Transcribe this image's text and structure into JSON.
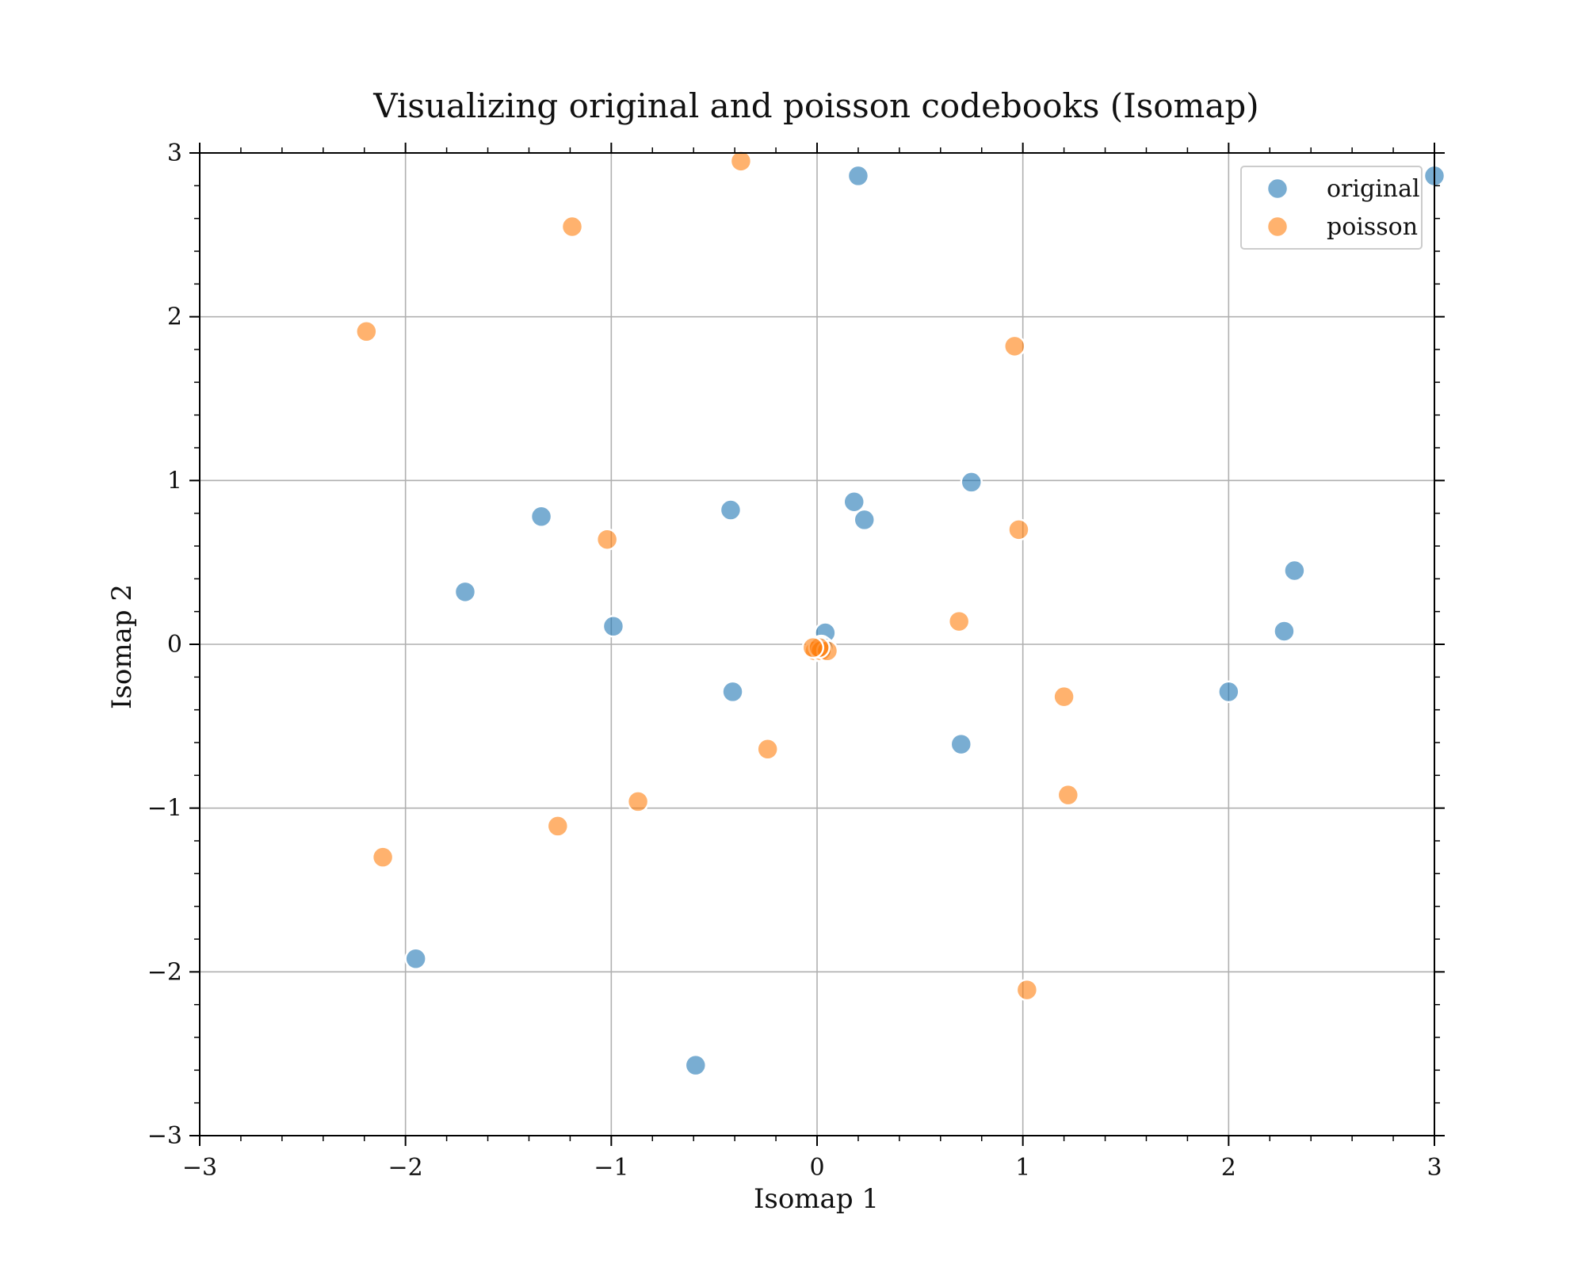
{
  "chart_data": {
    "type": "scatter",
    "title": "Visualizing original and poisson codebooks (Isomap)",
    "xlabel": "Isomap 1",
    "ylabel": "Isomap 2",
    "xlim": [
      -3,
      3
    ],
    "ylim": [
      -3,
      3
    ],
    "x_ticks": [
      -3,
      -2,
      -1,
      0,
      1,
      2,
      3
    ],
    "y_ticks": [
      -3,
      -2,
      -1,
      0,
      1,
      2,
      3
    ],
    "x_tick_labels": [
      "−3",
      "−2",
      "−1",
      "0",
      "1",
      "2",
      "3"
    ],
    "y_tick_labels": [
      "−3",
      "−2",
      "−1",
      "0",
      "1",
      "2",
      "3"
    ],
    "grid": true,
    "legend_position": "top-right",
    "series": [
      {
        "name": "original",
        "color": "#1f77b4",
        "points": [
          [
            0.2,
            2.86
          ],
          [
            3.0,
            2.86
          ],
          [
            0.75,
            0.99
          ],
          [
            0.18,
            0.87
          ],
          [
            0.23,
            0.76
          ],
          [
            -0.42,
            0.82
          ],
          [
            -1.34,
            0.78
          ],
          [
            -1.71,
            0.32
          ],
          [
            -0.99,
            0.11
          ],
          [
            2.32,
            0.45
          ],
          [
            2.27,
            0.08
          ],
          [
            0.04,
            0.07
          ],
          [
            0.02,
            -0.01
          ],
          [
            0.03,
            -0.02
          ],
          [
            -0.41,
            -0.29
          ],
          [
            0.7,
            -0.61
          ],
          [
            2.0,
            -0.29
          ],
          [
            -1.95,
            -1.92
          ],
          [
            -0.59,
            -2.57
          ]
        ]
      },
      {
        "name": "poisson",
        "color": "#ff7f0e",
        "points": [
          [
            -0.37,
            2.95
          ],
          [
            -1.19,
            2.55
          ],
          [
            -2.19,
            1.91
          ],
          [
            0.96,
            1.82
          ],
          [
            0.98,
            0.7
          ],
          [
            -1.02,
            0.64
          ],
          [
            0.69,
            0.14
          ],
          [
            0.0,
            -0.03
          ],
          [
            -0.01,
            -0.04
          ],
          [
            0.02,
            -0.04
          ],
          [
            0.05,
            -0.04
          ],
          [
            0.01,
            -0.02
          ],
          [
            1.2,
            -0.32
          ],
          [
            -0.24,
            -0.64
          ],
          [
            -0.87,
            -0.96
          ],
          [
            -1.26,
            -1.11
          ],
          [
            1.22,
            -0.92
          ],
          [
            -2.11,
            -1.3
          ],
          [
            1.02,
            -2.11
          ],
          [
            -0.02,
            -0.02
          ]
        ]
      }
    ]
  }
}
